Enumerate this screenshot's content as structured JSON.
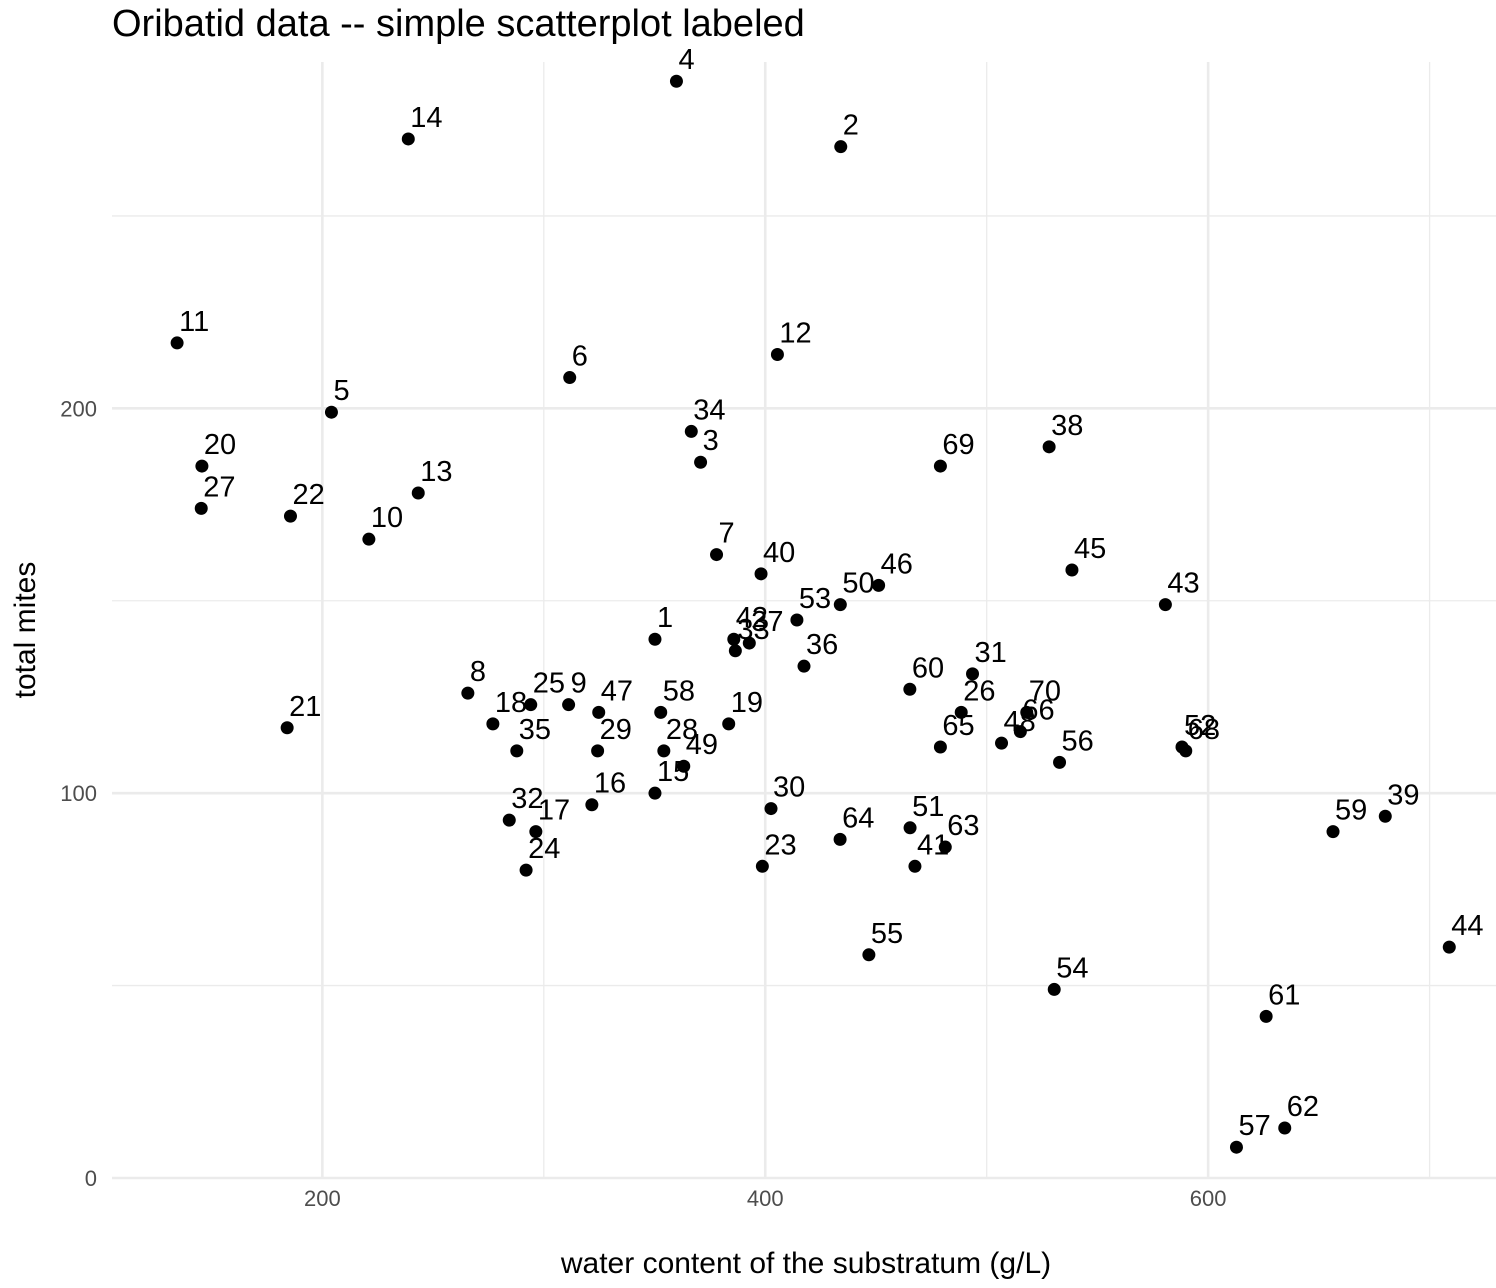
{
  "chart_data": {
    "type": "scatter",
    "title": "Oribatid data -- simple scatterplot labeled",
    "xlabel": "water content of the substratum (g/L)",
    "ylabel": "total mites",
    "xlim": [
      105,
      730
    ],
    "ylim": [
      0,
      290
    ],
    "x_ticks": [
      200,
      400,
      600
    ],
    "y_ticks": [
      0,
      100,
      200
    ],
    "grid": true,
    "point_color": "#000000",
    "points": [
      {
        "label": "1",
        "x": 350.2,
        "y": 140
      },
      {
        "label": "2",
        "x": 434.1,
        "y": 268
      },
      {
        "label": "3",
        "x": 370.8,
        "y": 186
      },
      {
        "label": "4",
        "x": 359.9,
        "y": 285
      },
      {
        "label": "5",
        "x": 204.1,
        "y": 199
      },
      {
        "label": "6",
        "x": 311.7,
        "y": 208
      },
      {
        "label": "7",
        "x": 378.0,
        "y": 162
      },
      {
        "label": "8",
        "x": 265.7,
        "y": 126
      },
      {
        "label": "9",
        "x": 311.2,
        "y": 123
      },
      {
        "label": "10",
        "x": 221.0,
        "y": 166
      },
      {
        "label": "11",
        "x": 134.4,
        "y": 217
      },
      {
        "label": "12",
        "x": 405.5,
        "y": 214
      },
      {
        "label": "13",
        "x": 243.3,
        "y": 178
      },
      {
        "label": "14",
        "x": 238.8,
        "y": 270
      },
      {
        "label": "15",
        "x": 350.2,
        "y": 100
      },
      {
        "label": "16",
        "x": 321.7,
        "y": 97
      },
      {
        "label": "17",
        "x": 296.4,
        "y": 90
      },
      {
        "label": "18",
        "x": 277.0,
        "y": 118
      },
      {
        "label": "19",
        "x": 383.5,
        "y": 118
      },
      {
        "label": "20",
        "x": 145.6,
        "y": 185
      },
      {
        "label": "21",
        "x": 184.1,
        "y": 117
      },
      {
        "label": "22",
        "x": 185.6,
        "y": 172
      },
      {
        "label": "23",
        "x": 398.7,
        "y": 81
      },
      {
        "label": "24",
        "x": 292.0,
        "y": 80
      },
      {
        "label": "25",
        "x": 294.1,
        "y": 123
      },
      {
        "label": "26",
        "x": 488.5,
        "y": 121
      },
      {
        "label": "27",
        "x": 145.3,
        "y": 174
      },
      {
        "label": "28",
        "x": 354.2,
        "y": 111
      },
      {
        "label": "29",
        "x": 324.3,
        "y": 111
      },
      {
        "label": "30",
        "x": 402.6,
        "y": 96
      },
      {
        "label": "31",
        "x": 493.6,
        "y": 131
      },
      {
        "label": "32",
        "x": 284.4,
        "y": 93
      },
      {
        "label": "33",
        "x": 386.5,
        "y": 137
      },
      {
        "label": "34",
        "x": 366.6,
        "y": 194
      },
      {
        "label": "35",
        "x": 287.8,
        "y": 111
      },
      {
        "label": "36",
        "x": 417.5,
        "y": 133
      },
      {
        "label": "37",
        "x": 392.8,
        "y": 139
      },
      {
        "label": "38",
        "x": 528.2,
        "y": 190
      },
      {
        "label": "39",
        "x": 680.0,
        "y": 94
      },
      {
        "label": "40",
        "x": 398.1,
        "y": 157
      },
      {
        "label": "41",
        "x": 467.6,
        "y": 81
      },
      {
        "label": "42",
        "x": 385.8,
        "y": 140
      },
      {
        "label": "43",
        "x": 580.7,
        "y": 149
      },
      {
        "label": "44",
        "x": 708.9,
        "y": 60
      },
      {
        "label": "45",
        "x": 538.5,
        "y": 158
      },
      {
        "label": "46",
        "x": 451.2,
        "y": 154
      },
      {
        "label": "47",
        "x": 324.8,
        "y": 121
      },
      {
        "label": "48",
        "x": 506.7,
        "y": 113
      },
      {
        "label": "49",
        "x": 363.2,
        "y": 107
      },
      {
        "label": "50",
        "x": 433.9,
        "y": 149
      },
      {
        "label": "51",
        "x": 465.4,
        "y": 91
      },
      {
        "label": "52",
        "x": 588.2,
        "y": 112
      },
      {
        "label": "53",
        "x": 414.3,
        "y": 145
      },
      {
        "label": "54",
        "x": 530.5,
        "y": 49
      },
      {
        "label": "55",
        "x": 446.8,
        "y": 58
      },
      {
        "label": "56",
        "x": 532.9,
        "y": 108
      },
      {
        "label": "57",
        "x": 612.8,
        "y": 8
      },
      {
        "label": "58",
        "x": 352.8,
        "y": 121
      },
      {
        "label": "59",
        "x": 656.4,
        "y": 90
      },
      {
        "label": "60",
        "x": 465.3,
        "y": 127
      },
      {
        "label": "61",
        "x": 626.2,
        "y": 42
      },
      {
        "label": "62",
        "x": 634.6,
        "y": 13
      },
      {
        "label": "63",
        "x": 481.3,
        "y": 86
      },
      {
        "label": "64",
        "x": 433.8,
        "y": 88
      },
      {
        "label": "65",
        "x": 479.1,
        "y": 112
      },
      {
        "label": "66",
        "x": 515.2,
        "y": 116
      },
      {
        "label": "68",
        "x": 589.9,
        "y": 111
      },
      {
        "label": "69",
        "x": 479.1,
        "y": 185
      },
      {
        "label": "70",
        "x": 518.1,
        "y": 121
      }
    ]
  }
}
